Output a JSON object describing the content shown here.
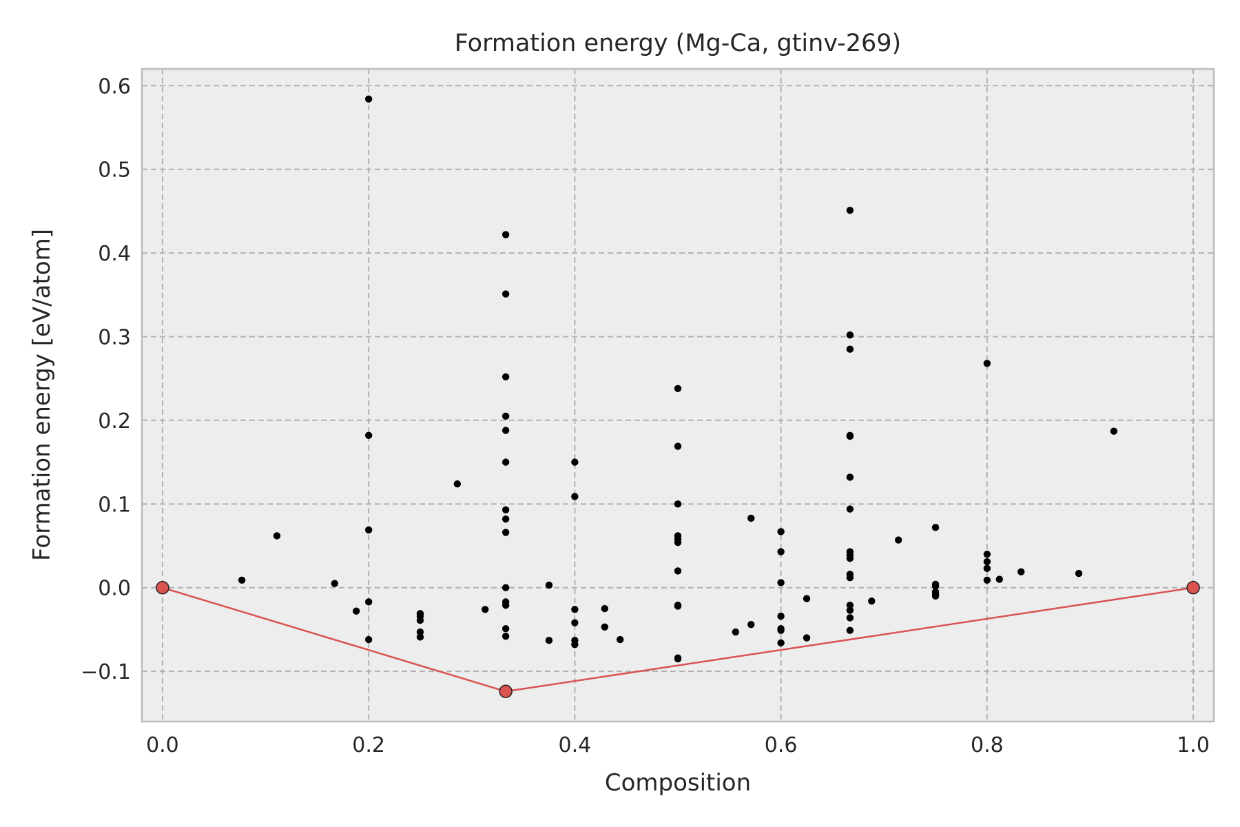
{
  "chart_data": {
    "type": "scatter",
    "title": "Formation energy (Mg-Ca, gtinv-269)",
    "xlabel": "Composition",
    "ylabel": "Formation energy [eV/atom]",
    "xlim": [
      -0.02,
      1.02
    ],
    "ylim": [
      -0.16,
      0.62
    ],
    "grid": true,
    "x_ticks": [
      0.0,
      0.2,
      0.4,
      0.6,
      0.8,
      1.0
    ],
    "x_tick_labels": [
      "0.0",
      "0.2",
      "0.4",
      "0.6",
      "0.8",
      "1.0"
    ],
    "y_ticks": [
      -0.1,
      0.0,
      0.1,
      0.2,
      0.3,
      0.4,
      0.5,
      0.6
    ],
    "y_tick_labels": [
      "−0.1",
      "0.0",
      "0.1",
      "0.2",
      "0.3",
      "0.4",
      "0.5",
      "0.6"
    ],
    "colors": {
      "structures": "#000000",
      "hull": "#d9534f",
      "background": "#ededed",
      "grid": "#b0b0b0"
    },
    "series": [
      {
        "role": "structures",
        "points": [
          [
            0.077,
            0.009
          ],
          [
            0.111,
            0.062
          ],
          [
            0.167,
            0.005
          ],
          [
            0.188,
            -0.028
          ],
          [
            0.2,
            0.584
          ],
          [
            0.2,
            0.182
          ],
          [
            0.2,
            0.069
          ],
          [
            0.2,
            -0.017
          ],
          [
            0.2,
            -0.062
          ],
          [
            0.25,
            -0.031
          ],
          [
            0.25,
            -0.034
          ],
          [
            0.25,
            -0.039
          ],
          [
            0.25,
            -0.053
          ],
          [
            0.25,
            -0.059
          ],
          [
            0.286,
            0.124
          ],
          [
            0.313,
            -0.026
          ],
          [
            0.333,
            0.422
          ],
          [
            0.333,
            0.351
          ],
          [
            0.333,
            0.252
          ],
          [
            0.333,
            0.205
          ],
          [
            0.333,
            0.188
          ],
          [
            0.333,
            0.15
          ],
          [
            0.333,
            0.093
          ],
          [
            0.333,
            0.082
          ],
          [
            0.333,
            0.066
          ],
          [
            0.333,
            0.0
          ],
          [
            0.333,
            -0.017
          ],
          [
            0.333,
            -0.021
          ],
          [
            0.333,
            -0.049
          ],
          [
            0.333,
            -0.058
          ],
          [
            0.375,
            0.003
          ],
          [
            0.375,
            -0.063
          ],
          [
            0.4,
            0.15
          ],
          [
            0.4,
            0.109
          ],
          [
            0.4,
            -0.026
          ],
          [
            0.4,
            -0.042
          ],
          [
            0.4,
            -0.063
          ],
          [
            0.4,
            -0.068
          ],
          [
            0.429,
            -0.025
          ],
          [
            0.429,
            -0.047
          ],
          [
            0.444,
            -0.062
          ],
          [
            0.5,
            0.238
          ],
          [
            0.5,
            0.169
          ],
          [
            0.5,
            0.1
          ],
          [
            0.5,
            0.062
          ],
          [
            0.5,
            0.058
          ],
          [
            0.5,
            0.054
          ],
          [
            0.5,
            0.02
          ],
          [
            0.5,
            -0.021
          ],
          [
            0.5,
            -0.022
          ],
          [
            0.5,
            -0.084
          ],
          [
            0.5,
            -0.085
          ],
          [
            0.556,
            -0.053
          ],
          [
            0.571,
            0.083
          ],
          [
            0.571,
            -0.044
          ],
          [
            0.6,
            0.067
          ],
          [
            0.6,
            0.043
          ],
          [
            0.6,
            0.006
          ],
          [
            0.6,
            -0.034
          ],
          [
            0.6,
            -0.049
          ],
          [
            0.6,
            -0.051
          ],
          [
            0.6,
            -0.066
          ],
          [
            0.625,
            -0.013
          ],
          [
            0.625,
            -0.06
          ],
          [
            0.667,
            0.451
          ],
          [
            0.667,
            0.302
          ],
          [
            0.667,
            0.285
          ],
          [
            0.667,
            0.182
          ],
          [
            0.667,
            0.181
          ],
          [
            0.667,
            0.132
          ],
          [
            0.667,
            0.094
          ],
          [
            0.667,
            0.043
          ],
          [
            0.667,
            0.039
          ],
          [
            0.667,
            0.035
          ],
          [
            0.667,
            0.016
          ],
          [
            0.667,
            0.012
          ],
          [
            0.667,
            -0.021
          ],
          [
            0.667,
            -0.027
          ],
          [
            0.667,
            -0.036
          ],
          [
            0.667,
            -0.051
          ],
          [
            0.688,
            -0.016
          ],
          [
            0.714,
            0.057
          ],
          [
            0.75,
            0.072
          ],
          [
            0.75,
            0.004
          ],
          [
            0.75,
            0.002
          ],
          [
            0.75,
            -0.005
          ],
          [
            0.75,
            -0.008
          ],
          [
            0.75,
            -0.01
          ],
          [
            0.8,
            0.268
          ],
          [
            0.8,
            0.04
          ],
          [
            0.8,
            0.031
          ],
          [
            0.8,
            0.023
          ],
          [
            0.8,
            0.009
          ],
          [
            0.812,
            0.01
          ],
          [
            0.833,
            0.019
          ],
          [
            0.889,
            0.017
          ],
          [
            0.923,
            0.187
          ]
        ]
      },
      {
        "role": "hull",
        "points": [
          [
            0.0,
            0.0
          ],
          [
            0.333,
            -0.124
          ],
          [
            1.0,
            0.0
          ]
        ]
      }
    ]
  }
}
